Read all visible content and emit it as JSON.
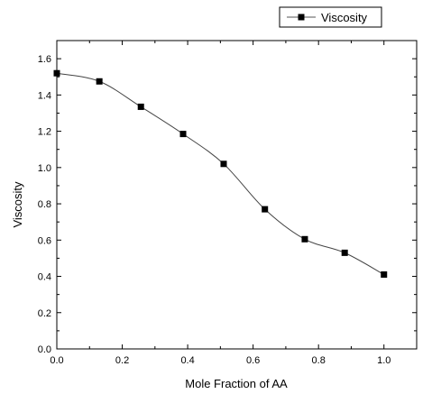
{
  "chart_data": {
    "type": "line",
    "title": "",
    "xlabel": "Mole Fraction of AA",
    "ylabel": "Viscosity",
    "xlim": [
      0.0,
      1.1
    ],
    "ylim": [
      0.0,
      1.7
    ],
    "x_ticks": [
      0.0,
      0.2,
      0.4,
      0.6,
      0.8,
      1.0
    ],
    "x_tick_labels": [
      "0.0",
      "0.2",
      "0.4",
      "0.6",
      "0.8",
      "1.0"
    ],
    "y_ticks": [
      0.0,
      0.2,
      0.4,
      0.6,
      0.8,
      1.0,
      1.2,
      1.4,
      1.6
    ],
    "y_tick_labels": [
      "0.0",
      "0.2",
      "0.4",
      "0.6",
      "0.8",
      "1.0",
      "1.2",
      "1.4",
      "1.6"
    ],
    "grid": false,
    "legend_position": "top-right, above plot",
    "series": [
      {
        "name": "Viscosity",
        "marker": "square",
        "line": "smooth",
        "color": "#000000",
        "x": [
          0.0,
          0.13,
          0.257,
          0.386,
          0.51,
          0.636,
          0.758,
          0.88,
          1.0
        ],
        "y": [
          1.52,
          1.475,
          1.335,
          1.185,
          1.02,
          0.77,
          0.605,
          0.53,
          0.41
        ]
      }
    ]
  }
}
